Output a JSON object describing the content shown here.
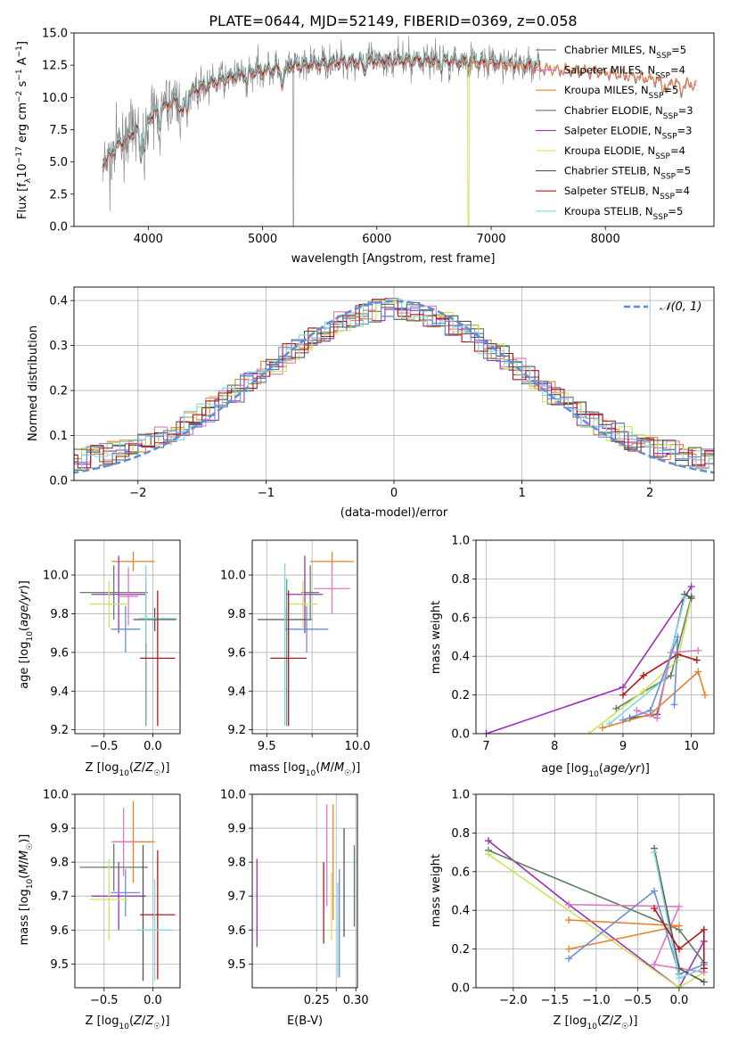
{
  "chart_data": [
    {
      "id": "spectrum",
      "type": "line",
      "title": "PLATE=0644, MJD=52149, FIBERID=0369, z=0.058",
      "xlabel": "wavelength [Angstrom, rest frame]",
      "ylabel_tex": [
        "Flux [f",
        "λ",
        "10",
        "−17",
        " erg cm",
        "−2",
        " s",
        "−1",
        " A",
        "−1",
        "]"
      ],
      "xlim": [
        3350,
        8950
      ],
      "ylim": [
        0,
        15
      ],
      "xticks": [
        4000,
        5000,
        6000,
        7000,
        8000
      ],
      "yticks": [
        0.0,
        2.5,
        5.0,
        7.5,
        10.0,
        12.5,
        15.0
      ],
      "ytick_labels": [
        "0.0",
        "2.5",
        "5.0",
        "7.5",
        "10.0",
        "12.5",
        "15.0"
      ],
      "grid": false,
      "legend_position": "right",
      "continuum": {
        "x": [
          3600,
          3700,
          3900,
          4100,
          4300,
          4600,
          4900,
          5300,
          5700,
          6100,
          6500,
          6800,
          7200,
          7600,
          8000,
          8400,
          8800
        ],
        "y": [
          4.8,
          6.0,
          7.6,
          9.1,
          10.2,
          11.3,
          12.0,
          12.5,
          12.8,
          12.9,
          12.9,
          12.8,
          12.6,
          12.3,
          12.1,
          11.6,
          11.1
        ]
      },
      "observed": {
        "name": "data",
        "color": "#808080",
        "x_range": [
          3600,
          7430
        ],
        "noise": 0.9
      },
      "series": [
        {
          "name": "Chabrier MILES",
          "nssp": "5",
          "color": "#6a6a6a"
        },
        {
          "name": "Salpeter MILES",
          "nssp": "4",
          "color": "#e377c2"
        },
        {
          "name": "Kroupa MILES",
          "nssp": "5",
          "color": "#e8812b"
        },
        {
          "name": "Chabrier ELODIE",
          "nssp": "3",
          "color": "#5f7f5f"
        },
        {
          "name": "Salpeter ELODIE",
          "nssp": "3",
          "color": "#9a32b8"
        },
        {
          "name": "Kroupa ELODIE",
          "nssp": "4",
          "color": "#cde35c"
        },
        {
          "name": "Chabrier STELIB",
          "nssp": "5",
          "color": "#555555"
        },
        {
          "name": "Salpeter STELIB",
          "nssp": "4",
          "color": "#b0161a"
        },
        {
          "name": "Kroupa STELIB",
          "nssp": "5",
          "color": "#7fd9d9"
        }
      ]
    },
    {
      "id": "residuals",
      "type": "line",
      "xlabel": "(data-model)/error",
      "ylabel": "Normed distribution",
      "xlim": [
        -2.5,
        2.5
      ],
      "ylim": [
        0,
        0.43
      ],
      "xticks": [
        -2,
        -1,
        0,
        1,
        2
      ],
      "xtick_labels": [
        "−2",
        "−1",
        "0",
        "1",
        "2"
      ],
      "yticks": [
        0.0,
        0.1,
        0.2,
        0.3,
        0.4
      ],
      "ytick_labels": [
        "0.0",
        "0.1",
        "0.2",
        "0.3",
        "0.4"
      ],
      "grid": true,
      "legend_position": "top-right",
      "reference": {
        "name": "𝒩(0, 1)",
        "color": "#5b8dd8",
        "style": "dashed"
      },
      "bin_width": 0.1,
      "hist_colors": [
        "#6a6a6a",
        "#e377c2",
        "#e8812b",
        "#5f7f5f",
        "#9a32b8",
        "#cde35c",
        "#555555",
        "#b0161a",
        "#7fd9d9",
        "#6a8fd8"
      ]
    },
    {
      "id": "age-vs-Z",
      "type": "scatter",
      "xlabel": "Z [log10(Z/Z☉)]",
      "ylabel": "age  [log10(age/yr)]",
      "xlim": [
        -0.8,
        0.28
      ],
      "ylim": [
        9.18,
        10.18
      ],
      "xticks": [
        -0.5,
        0.0
      ],
      "xtick_labels": [
        "−0.5",
        "0.0"
      ],
      "yticks": [
        9.2,
        9.4,
        9.6,
        9.8,
        10.0
      ],
      "ytick_labels": [
        "9.2",
        "9.4",
        "9.6",
        "9.8",
        "10.0"
      ],
      "grid": true,
      "errorbars": [
        {
          "color": "#e8812b",
          "x": -0.2,
          "xerr": 0.22,
          "y": 10.07,
          "yerr": 0.05
        },
        {
          "color": "#9a32b8",
          "x": -0.35,
          "xerr": 0.28,
          "y": 9.9,
          "yerr": 0.2
        },
        {
          "color": "#5f7f5f",
          "x": -0.4,
          "xerr": 0.35,
          "y": 9.91,
          "yerr": 0.14
        },
        {
          "color": "#e377c2",
          "x": -0.25,
          "xerr": 0.1,
          "y": 9.89,
          "yerr": 0.15
        },
        {
          "color": "#cde35c",
          "x": -0.45,
          "xerr": 0.2,
          "y": 9.85,
          "yerr": 0.12
        },
        {
          "color": "#6a8fd8",
          "x": -0.28,
          "xerr": 0.15,
          "y": 9.72,
          "yerr": 0.12
        },
        {
          "color": "#555555",
          "x": 0.02,
          "xerr": 0.22,
          "y": 9.77,
          "yerr": 0.06
        },
        {
          "color": "#7fd9d9",
          "x": 0.05,
          "xerr": 0.2,
          "y": 9.775,
          "yerr": 0.01
        },
        {
          "color": "#5f9f9f",
          "x": -0.07,
          "xerr": 0.0,
          "y": 9.6,
          "yerr": 0.38
        },
        {
          "color": "#7fd9d9",
          "x": -0.07,
          "xerr": 0.0,
          "y": 9.85,
          "yerr": 0.2
        },
        {
          "color": "#b0161a",
          "x": 0.05,
          "xerr": 0.18,
          "y": 9.57,
          "yerr": 0.35
        }
      ]
    },
    {
      "id": "age-vs-mass",
      "type": "scatter",
      "xlabel": "mass [log10(M/M☉)]",
      "xlim": [
        9.42,
        10.0
      ],
      "ylim": [
        9.18,
        10.18
      ],
      "xticks": [
        9.5,
        9.75,
        10.0
      ],
      "xtick_labels": [
        "9.5",
        "",
        "10.0"
      ],
      "yticks": [
        9.2,
        9.4,
        9.6,
        9.8,
        10.0
      ],
      "ytick_labels": [
        "9.2",
        "9.4",
        "9.6",
        "9.8",
        "10.0"
      ],
      "grid": true,
      "errorbars": [
        {
          "color": "#e8812b",
          "x": 9.86,
          "xerr": 0.12,
          "y": 10.07,
          "yerr": 0.05
        },
        {
          "color": "#e377c2",
          "x": 9.86,
          "xerr": 0.1,
          "y": 9.93,
          "yerr": 0.13
        },
        {
          "color": "#9a32b8",
          "x": 9.71,
          "xerr": 0.1,
          "y": 9.9,
          "yerr": 0.2
        },
        {
          "color": "#5f7f5f",
          "x": 9.74,
          "xerr": 0.05,
          "y": 9.91,
          "yerr": 0.14
        },
        {
          "color": "#cde35c",
          "x": 9.7,
          "xerr": 0.08,
          "y": 9.85,
          "yerr": 0.12
        },
        {
          "color": "#555555",
          "x": 9.6,
          "xerr": 0.15,
          "y": 9.77,
          "yerr": 0.06
        },
        {
          "color": "#6a8fd8",
          "x": 9.72,
          "xerr": 0.12,
          "y": 9.72,
          "yerr": 0.12
        },
        {
          "color": "#7fd9d9",
          "x": 9.6,
          "xerr": 0.0,
          "y": 9.64,
          "yerr": 0.42
        },
        {
          "color": "#5f9f9f",
          "x": 9.61,
          "xerr": 0.0,
          "y": 9.6,
          "yerr": 0.38
        },
        {
          "color": "#b0161a",
          "x": 9.62,
          "xerr": 0.1,
          "y": 9.57,
          "yerr": 0.35
        }
      ]
    },
    {
      "id": "weight-vs-age",
      "type": "line",
      "xlabel": "age  [log10(age/yr)]",
      "ylabel": "mass weight",
      "xlim": [
        6.85,
        10.33
      ],
      "ylim": [
        0,
        1
      ],
      "xticks": [
        7,
        8,
        9,
        10
      ],
      "xtick_labels": [
        "7",
        "8",
        "9",
        "10"
      ],
      "yticks": [
        0.0,
        0.2,
        0.4,
        0.6,
        0.8,
        1.0
      ],
      "ytick_labels": [
        "0.0",
        "0.2",
        "0.4",
        "0.6",
        "0.8",
        "1.0"
      ],
      "grid": true,
      "series": [
        {
          "color": "#9a32b8",
          "x": [
            7.0,
            9.0,
            10.0
          ],
          "y": [
            0.0,
            0.24,
            0.76
          ]
        },
        {
          "color": "#5f7f5f",
          "x": [
            8.9,
            9.7,
            10.0
          ],
          "y": [
            0.13,
            0.3,
            0.71
          ]
        },
        {
          "color": "#cde35c",
          "x": [
            8.5,
            9.3,
            9.8,
            10.0
          ],
          "y": [
            0.0,
            0.22,
            0.38,
            0.7
          ]
        },
        {
          "color": "#b0161a",
          "x": [
            9.0,
            9.3,
            9.8,
            10.08
          ],
          "y": [
            0.2,
            0.3,
            0.41,
            0.38
          ]
        },
        {
          "color": "#555555",
          "x": [
            9.1,
            9.5,
            9.9,
            10.0
          ],
          "y": [
            0.08,
            0.1,
            0.72,
            0.7
          ]
        },
        {
          "color": "#7fd9d9",
          "x": [
            8.8,
            9.6,
            9.9
          ],
          "y": [
            0.05,
            0.28,
            0.7
          ]
        },
        {
          "color": "#e8812b",
          "x": [
            8.7,
            9.4,
            10.1,
            10.2
          ],
          "y": [
            0.03,
            0.1,
            0.32,
            0.2
          ]
        },
        {
          "color": "#e377c2",
          "x": [
            9.2,
            9.5,
            9.7,
            10.1
          ],
          "y": [
            0.12,
            0.08,
            0.42,
            0.43
          ]
        },
        {
          "color": "#6a8fd8",
          "x": [
            9.0,
            9.4,
            9.8,
            9.75
          ],
          "y": [
            0.07,
            0.12,
            0.5,
            0.15
          ]
        }
      ]
    },
    {
      "id": "mass-vs-Z",
      "type": "scatter",
      "xlabel": "Z [log10(Z/Z☉)]",
      "ylabel": "mass [log10(M/M☉)]",
      "xlim": [
        -0.8,
        0.28
      ],
      "ylim": [
        9.43,
        10.0
      ],
      "xticks": [
        -0.5,
        0.0
      ],
      "xtick_labels": [
        "−0.5",
        "0.0"
      ],
      "yticks": [
        9.5,
        9.6,
        9.7,
        9.8,
        9.9,
        10.0
      ],
      "ytick_labels": [
        "9.5",
        "9.6",
        "9.7",
        "9.8",
        "9.9",
        "10.0"
      ],
      "grid": true,
      "errorbars": [
        {
          "color": "#e8812b",
          "x": -0.2,
          "xerr": 0.22,
          "y": 9.86,
          "yerr": 0.12
        },
        {
          "color": "#e377c2",
          "x": -0.3,
          "xerr": 0.1,
          "y": 9.86,
          "yerr": 0.1
        },
        {
          "color": "#5f7f5f",
          "x": -0.4,
          "xerr": 0.35,
          "y": 9.785,
          "yerr": 0.07
        },
        {
          "color": "#9a32b8",
          "x": -0.35,
          "xerr": 0.28,
          "y": 9.7,
          "yerr": 0.1
        },
        {
          "color": "#6a8fd8",
          "x": -0.28,
          "xerr": 0.15,
          "y": 9.71,
          "yerr": 0.07
        },
        {
          "color": "#cde35c",
          "x": -0.45,
          "xerr": 0.2,
          "y": 9.69,
          "yerr": 0.12
        },
        {
          "color": "#555555",
          "x": -0.1,
          "xerr": 0.0,
          "y": 9.65,
          "yerr": 0.2
        },
        {
          "color": "#b0161a",
          "x": 0.05,
          "xerr": 0.18,
          "y": 9.645,
          "yerr": 0.19
        },
        {
          "color": "#7fd9d9",
          "x": 0.02,
          "xerr": 0.18,
          "y": 9.6,
          "yerr": 0.15
        }
      ]
    },
    {
      "id": "mass-vs-ebv",
      "type": "scatter",
      "xlabel": "E(B-V)",
      "xlim": [
        0.168,
        0.302
      ],
      "ylim": [
        9.43,
        10.0
      ],
      "xticks": [
        0.25,
        0.275,
        0.3
      ],
      "xtick_labels": [
        "0.25",
        "",
        "0.30"
      ],
      "yticks": [
        9.5,
        9.6,
        9.7,
        9.8,
        9.9,
        10.0
      ],
      "ytick_labels": [
        "9.5",
        "9.6",
        "9.7",
        "9.8",
        "9.9",
        "10.0"
      ],
      "grid": true,
      "errorbars": [
        {
          "color": "#9a32b8",
          "x": 0.174,
          "xerr": 0.0,
          "y": 9.68,
          "yerr": 0.13
        },
        {
          "color": "#b0161a",
          "x": 0.259,
          "xerr": 0.0,
          "y": 9.68,
          "yerr": 0.12
        },
        {
          "color": "#e377c2",
          "x": 0.263,
          "xerr": 0.0,
          "y": 9.82,
          "yerr": 0.15
        },
        {
          "color": "#e8812b",
          "x": 0.271,
          "xerr": 0.0,
          "y": 9.8,
          "yerr": 0.17
        },
        {
          "color": "#cde35c",
          "x": 0.269,
          "xerr": 0.0,
          "y": 9.67,
          "yerr": 0.1
        },
        {
          "color": "#7fd9d9",
          "x": 0.277,
          "xerr": 0.0,
          "y": 9.6,
          "yerr": 0.14
        },
        {
          "color": "#6a8fd8",
          "x": 0.279,
          "xerr": 0.0,
          "y": 9.62,
          "yerr": 0.16
        },
        {
          "color": "#555555",
          "x": 0.285,
          "xerr": 0.0,
          "y": 9.74,
          "yerr": 0.16
        },
        {
          "color": "#5f7f5f",
          "x": 0.298,
          "xerr": 0.0,
          "y": 9.73,
          "yerr": 0.12
        }
      ]
    },
    {
      "id": "weight-vs-Z",
      "type": "line",
      "xlabel": "Z [log10(Z/Z☉)]",
      "ylabel": "mass weight",
      "xlim": [
        -2.45,
        0.42
      ],
      "ylim": [
        0,
        1
      ],
      "xticks": [
        -2.0,
        -1.5,
        -1.0,
        -0.5,
        0.0
      ],
      "xtick_labels": [
        "−2.0",
        "−1.5",
        "−1.0",
        "−0.5",
        "0.0"
      ],
      "yticks": [
        0.0,
        0.2,
        0.4,
        0.6,
        0.8,
        1.0
      ],
      "ytick_labels": [
        "0.0",
        "0.2",
        "0.4",
        "0.6",
        "0.8",
        "1.0"
      ],
      "grid": true,
      "series": [
        {
          "color": "#9a32b8",
          "x": [
            -2.3,
            -1.33,
            0.0,
            0.3
          ],
          "y": [
            0.76,
            0.43,
            0.0,
            0.24
          ]
        },
        {
          "color": "#5f7f5f",
          "x": [
            -2.3,
            0.0,
            0.3
          ],
          "y": [
            0.71,
            0.3,
            0.13
          ]
        },
        {
          "color": "#cde35c",
          "x": [
            -2.3,
            0.0,
            0.3
          ],
          "y": [
            0.69,
            0.0,
            0.08
          ]
        },
        {
          "color": "#e377c2",
          "x": [
            -1.33,
            0.0,
            -0.3,
            0.3
          ],
          "y": [
            0.43,
            0.42,
            0.12,
            0.08
          ]
        },
        {
          "color": "#e8812b",
          "x": [
            -1.33,
            0.0,
            -1.33
          ],
          "y": [
            0.35,
            0.32,
            0.2
          ]
        },
        {
          "color": "#6a8fd8",
          "x": [
            -1.33,
            -0.3,
            0.0,
            0.3
          ],
          "y": [
            0.15,
            0.5,
            0.07,
            0.12
          ]
        },
        {
          "color": "#555555",
          "x": [
            -0.3,
            0.0,
            0.3
          ],
          "y": [
            0.72,
            0.1,
            0.03
          ]
        },
        {
          "color": "#7fd9d9",
          "x": [
            -0.3,
            0.0,
            0.3
          ],
          "y": [
            0.7,
            0.05,
            0.1
          ]
        },
        {
          "color": "#b0161a",
          "x": [
            -0.3,
            0.0,
            0.3,
            0.3
          ],
          "y": [
            0.41,
            0.2,
            0.3,
            0.1
          ]
        }
      ]
    }
  ]
}
